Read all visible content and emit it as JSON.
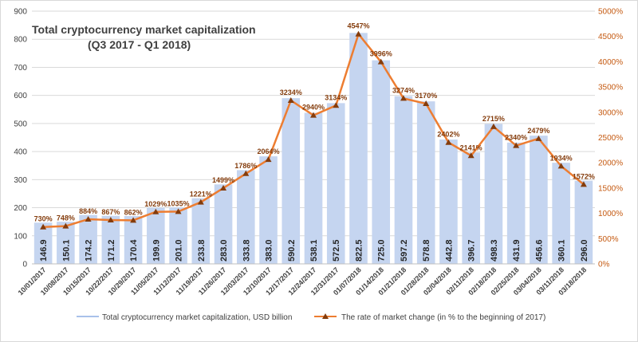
{
  "chart_data": {
    "type": "bar",
    "title": "Total cryptocurrency market capitalization",
    "subtitle": "(Q3 2017 - Q1 2018)",
    "categories": [
      "10/01/2017",
      "10/08/2017",
      "10/15/2017",
      "10/22/2017",
      "10/29/2017",
      "11/05/2017",
      "11/12/2017",
      "11/19/2017",
      "11/26/2017",
      "12/03/2017",
      "12/10/2017",
      "12/17/2017",
      "12/24/2017",
      "12/31/2017",
      "01/07/2018",
      "01/14/2018",
      "01/21/2018",
      "01/28/2018",
      "02/04/2018",
      "02/11/2018",
      "02/18/2018",
      "02/25/2018",
      "03/04/2018",
      "03/11/2018",
      "03/18/2018"
    ],
    "series": [
      {
        "name": "Total cryptocurrency market capitalization, USD billion",
        "type": "bar",
        "axis": "left",
        "values": [
          146.9,
          150.1,
          174.2,
          171.2,
          170.4,
          199.9,
          201.0,
          233.8,
          283.0,
          333.8,
          383.0,
          590.2,
          538.1,
          572.5,
          822.5,
          725.0,
          597.2,
          578.8,
          442.8,
          396.7,
          498.3,
          431.9,
          456.6,
          360.1,
          296.0
        ],
        "labels": [
          "146.9",
          "150.1",
          "174.2",
          "171.2",
          "170.4",
          "199.9",
          "201.0",
          "233.8",
          "283.0",
          "333.8",
          "383.0",
          "590.2",
          "538.1",
          "572.5",
          "822.5",
          "725.0",
          "597.2",
          "578.8",
          "442.8",
          "396.7",
          "498.3",
          "431.9",
          "456.6",
          "360.1",
          "296.0"
        ],
        "color": "#c5d5f0"
      },
      {
        "name": "The rate of market change (in % to the beginning of 2017)",
        "type": "line",
        "axis": "right",
        "values": [
          730,
          748,
          884,
          867,
          862,
          1029,
          1035,
          1221,
          1499,
          1786,
          2064,
          3234,
          2940,
          3134,
          4547,
          3996,
          3274,
          3170,
          2402,
          2141,
          2715,
          2340,
          2479,
          1934,
          1572
        ],
        "labels": [
          "730%",
          "748%",
          "884%",
          "867%",
          "862%",
          "1029%",
          "1035%",
          "1221%",
          "1499%",
          "1786%",
          "2064%",
          "3234%",
          "2940%",
          "3134%",
          "4547%",
          "3996%",
          "3274%",
          "3170%",
          "2402%",
          "2141%",
          "2715%",
          "2340%",
          "2479%",
          "1934%",
          "1572%"
        ],
        "color": "#ed7d31",
        "marker_color": "#843c0c"
      }
    ],
    "y_left": {
      "ylim": [
        0,
        900
      ],
      "ticks": [
        0,
        100,
        200,
        300,
        400,
        500,
        600,
        700,
        800,
        900
      ],
      "tick_labels": [
        "0",
        "100",
        "200",
        "300",
        "400",
        "500",
        "600",
        "700",
        "800",
        "900"
      ]
    },
    "y_right": {
      "ylim": [
        0,
        5000
      ],
      "ticks": [
        0,
        500,
        1000,
        1500,
        2000,
        2500,
        3000,
        3500,
        4000,
        4500,
        5000
      ],
      "tick_labels": [
        "0%",
        "500%",
        "1000%",
        "1500%",
        "2000%",
        "2500%",
        "3000%",
        "3500%",
        "4000%",
        "4500%",
        "5000%"
      ],
      "color": "#c55a11"
    },
    "grid": true,
    "legend": "bottom"
  }
}
